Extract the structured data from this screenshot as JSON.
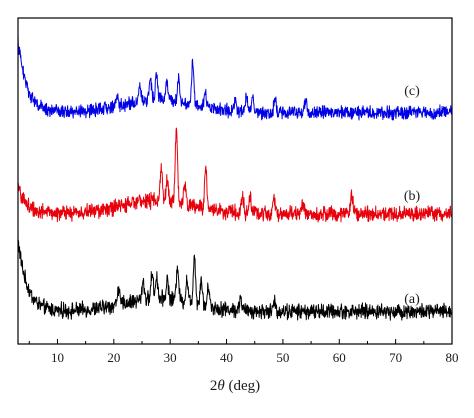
{
  "chart_data": {
    "type": "line",
    "xlabel_prefix": "2",
    "xlabel_symbol": "θ",
    "xlabel_suffix": " (deg)",
    "xlim": [
      3,
      80
    ],
    "xticks": [
      10,
      20,
      30,
      40,
      50,
      60,
      70,
      80
    ],
    "y_ticks_shown": false,
    "grid": false,
    "series": [
      {
        "name": "(a)",
        "color": "#000000",
        "baseline": 0.1,
        "noise": 0.035,
        "start_rise": 0.22,
        "peaks": [
          {
            "x": 20.8,
            "h": 0.05
          },
          {
            "x": 25.2,
            "h": 0.06
          },
          {
            "x": 26.8,
            "h": 0.08
          },
          {
            "x": 27.6,
            "h": 0.07
          },
          {
            "x": 29.5,
            "h": 0.06
          },
          {
            "x": 31.3,
            "h": 0.11
          },
          {
            "x": 33.0,
            "h": 0.07
          },
          {
            "x": 34.3,
            "h": 0.15
          },
          {
            "x": 35.5,
            "h": 0.08
          },
          {
            "x": 36.8,
            "h": 0.06
          },
          {
            "x": 42.5,
            "h": 0.04
          },
          {
            "x": 48.5,
            "h": 0.03
          }
        ]
      },
      {
        "name": "(b)",
        "color": "#e8000b",
        "baseline": 0.4,
        "noise": 0.035,
        "start_rise": 0.08,
        "peaks": [
          {
            "x": 24.5,
            "h": 0.03
          },
          {
            "x": 28.4,
            "h": 0.1
          },
          {
            "x": 29.5,
            "h": 0.07
          },
          {
            "x": 31.1,
            "h": 0.22
          },
          {
            "x": 32.6,
            "h": 0.05
          },
          {
            "x": 36.3,
            "h": 0.12
          },
          {
            "x": 42.8,
            "h": 0.06
          },
          {
            "x": 44.2,
            "h": 0.05
          },
          {
            "x": 48.4,
            "h": 0.05
          },
          {
            "x": 53.5,
            "h": 0.03
          },
          {
            "x": 62.2,
            "h": 0.06
          }
        ]
      },
      {
        "name": "(c)",
        "color": "#0000e6",
        "baseline": 0.71,
        "noise": 0.03,
        "start_rise": 0.22,
        "peaks": [
          {
            "x": 20.5,
            "h": 0.03
          },
          {
            "x": 24.6,
            "h": 0.05
          },
          {
            "x": 26.5,
            "h": 0.07
          },
          {
            "x": 27.6,
            "h": 0.08
          },
          {
            "x": 29.4,
            "h": 0.06
          },
          {
            "x": 31.5,
            "h": 0.07
          },
          {
            "x": 34.0,
            "h": 0.13
          },
          {
            "x": 36.2,
            "h": 0.05
          },
          {
            "x": 41.5,
            "h": 0.04
          },
          {
            "x": 43.5,
            "h": 0.05
          },
          {
            "x": 44.6,
            "h": 0.05
          },
          {
            "x": 48.6,
            "h": 0.04
          },
          {
            "x": 54.0,
            "h": 0.04
          }
        ]
      }
    ]
  }
}
